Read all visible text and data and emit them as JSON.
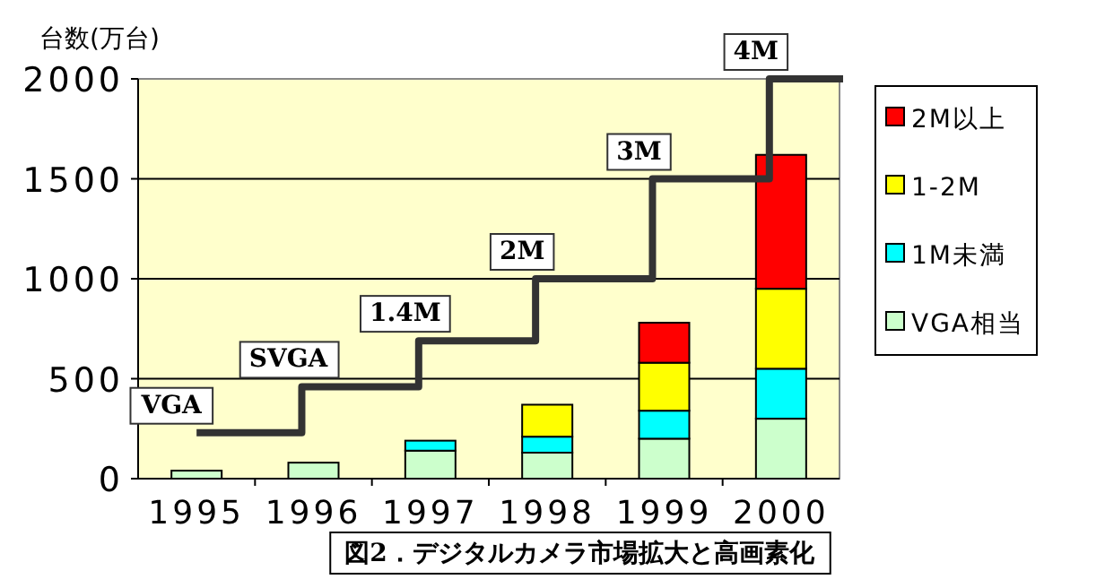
{
  "chart_data": {
    "type": "bar",
    "stacked": true,
    "title": "図2．デジタルカメラ市場拡大と高画素化",
    "ylabel": "台数(万台)",
    "categories": [
      "1995",
      "1996",
      "1997",
      "1998",
      "1999",
      "2000"
    ],
    "ylim": [
      0,
      2000
    ],
    "yticks": [
      0,
      500,
      1000,
      1500,
      2000
    ],
    "grid": "y",
    "legend": "right",
    "series": [
      {
        "name": "VGA相当",
        "color": "#ccffcc",
        "values": [
          40,
          80,
          140,
          130,
          200,
          300
        ]
      },
      {
        "name": "1M未満",
        "color": "#00ffff",
        "values": [
          0,
          0,
          50,
          80,
          140,
          250
        ]
      },
      {
        "name": "1-2M",
        "color": "#ffff00",
        "values": [
          0,
          0,
          0,
          160,
          240,
          400
        ]
      },
      {
        "name": "2M以上",
        "color": "#ff0000",
        "values": [
          0,
          0,
          0,
          0,
          200,
          670
        ]
      },
      {
        "type": "step",
        "color": "#333333",
        "values": [
          230,
          460,
          690,
          1000,
          1500,
          2000
        ]
      }
    ],
    "annotations": [
      {
        "text": "VGA",
        "x": "1995",
        "y": 230
      },
      {
        "text": "SVGA",
        "x": "1996",
        "y": 460
      },
      {
        "text": "1.4M",
        "x": "1997",
        "y": 690
      },
      {
        "text": "2M",
        "x": "1998",
        "y": 1000
      },
      {
        "text": "3M",
        "x": "1999",
        "y": 1500
      },
      {
        "text": "4M",
        "x": "2000",
        "y": 2000
      }
    ]
  }
}
